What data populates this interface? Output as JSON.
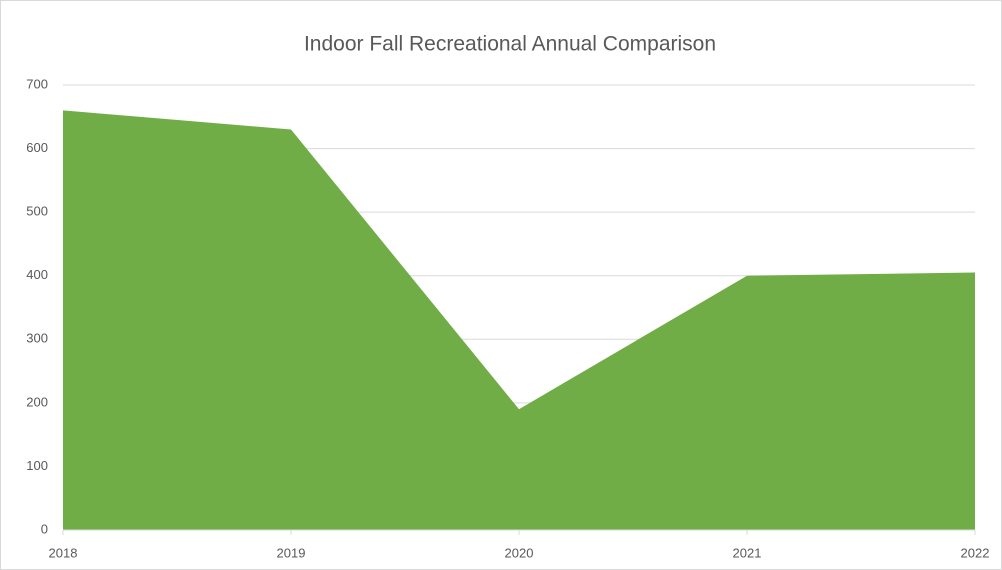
{
  "chart_data": {
    "type": "area",
    "title": "Indoor Fall Recreational Annual Comparison",
    "categories": [
      "2018",
      "2019",
      "2020",
      "2021",
      "2022"
    ],
    "values": [
      660,
      630,
      190,
      400,
      405
    ],
    "color": "#70ad47",
    "ylim": [
      0,
      700
    ],
    "yticks": [
      0,
      100,
      200,
      300,
      400,
      500,
      600,
      700
    ],
    "grid": true
  }
}
